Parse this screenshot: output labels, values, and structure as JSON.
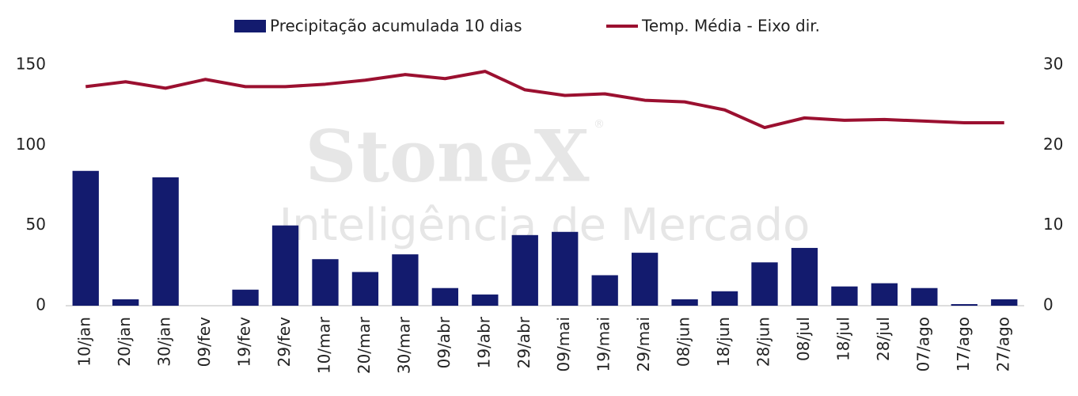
{
  "chart_data": {
    "type": "bar_line",
    "watermark": {
      "brand": "StoneX",
      "mark": "®",
      "tagline": "Inteligência de Mercado"
    },
    "categories": [
      "10/jan",
      "20/jan",
      "30/jan",
      "09/fev",
      "19/fev",
      "29/fev",
      "10/mar",
      "20/mar",
      "30/mar",
      "09/abr",
      "19/abr",
      "29/abr",
      "09/mai",
      "19/mai",
      "29/mai",
      "08/jun",
      "18/jun",
      "28/jun",
      "08/jul",
      "18/jul",
      "28/jul",
      "07/ago",
      "17/ago",
      "27/ago"
    ],
    "series": [
      {
        "name": "Precipitação acumulada 10 dias",
        "type": "bar",
        "color": "#131b6e",
        "axis": "y",
        "values": [
          84,
          4,
          80,
          0,
          10,
          50,
          29,
          21,
          32,
          11,
          7,
          44,
          46,
          19,
          33,
          4,
          9,
          27,
          36,
          12,
          14,
          11,
          1,
          4
        ]
      },
      {
        "name": "Temp. Média - Eixo dir.",
        "type": "line",
        "color": "#9b1030",
        "axis": "y2",
        "values": [
          27.3,
          27.9,
          27.1,
          28.2,
          27.3,
          27.3,
          27.6,
          28.1,
          28.8,
          28.3,
          29.2,
          26.9,
          26.2,
          26.4,
          25.6,
          25.4,
          24.4,
          22.2,
          23.4,
          23.1,
          23.2,
          23.0,
          22.8,
          22.8
        ]
      }
    ],
    "ylim": [
      0,
      150
    ],
    "yticks": [
      0,
      50,
      100,
      150
    ],
    "y2lim": [
      0,
      30
    ],
    "y2ticks": [
      0,
      10,
      20,
      30
    ],
    "legend": "top",
    "grid": false
  }
}
